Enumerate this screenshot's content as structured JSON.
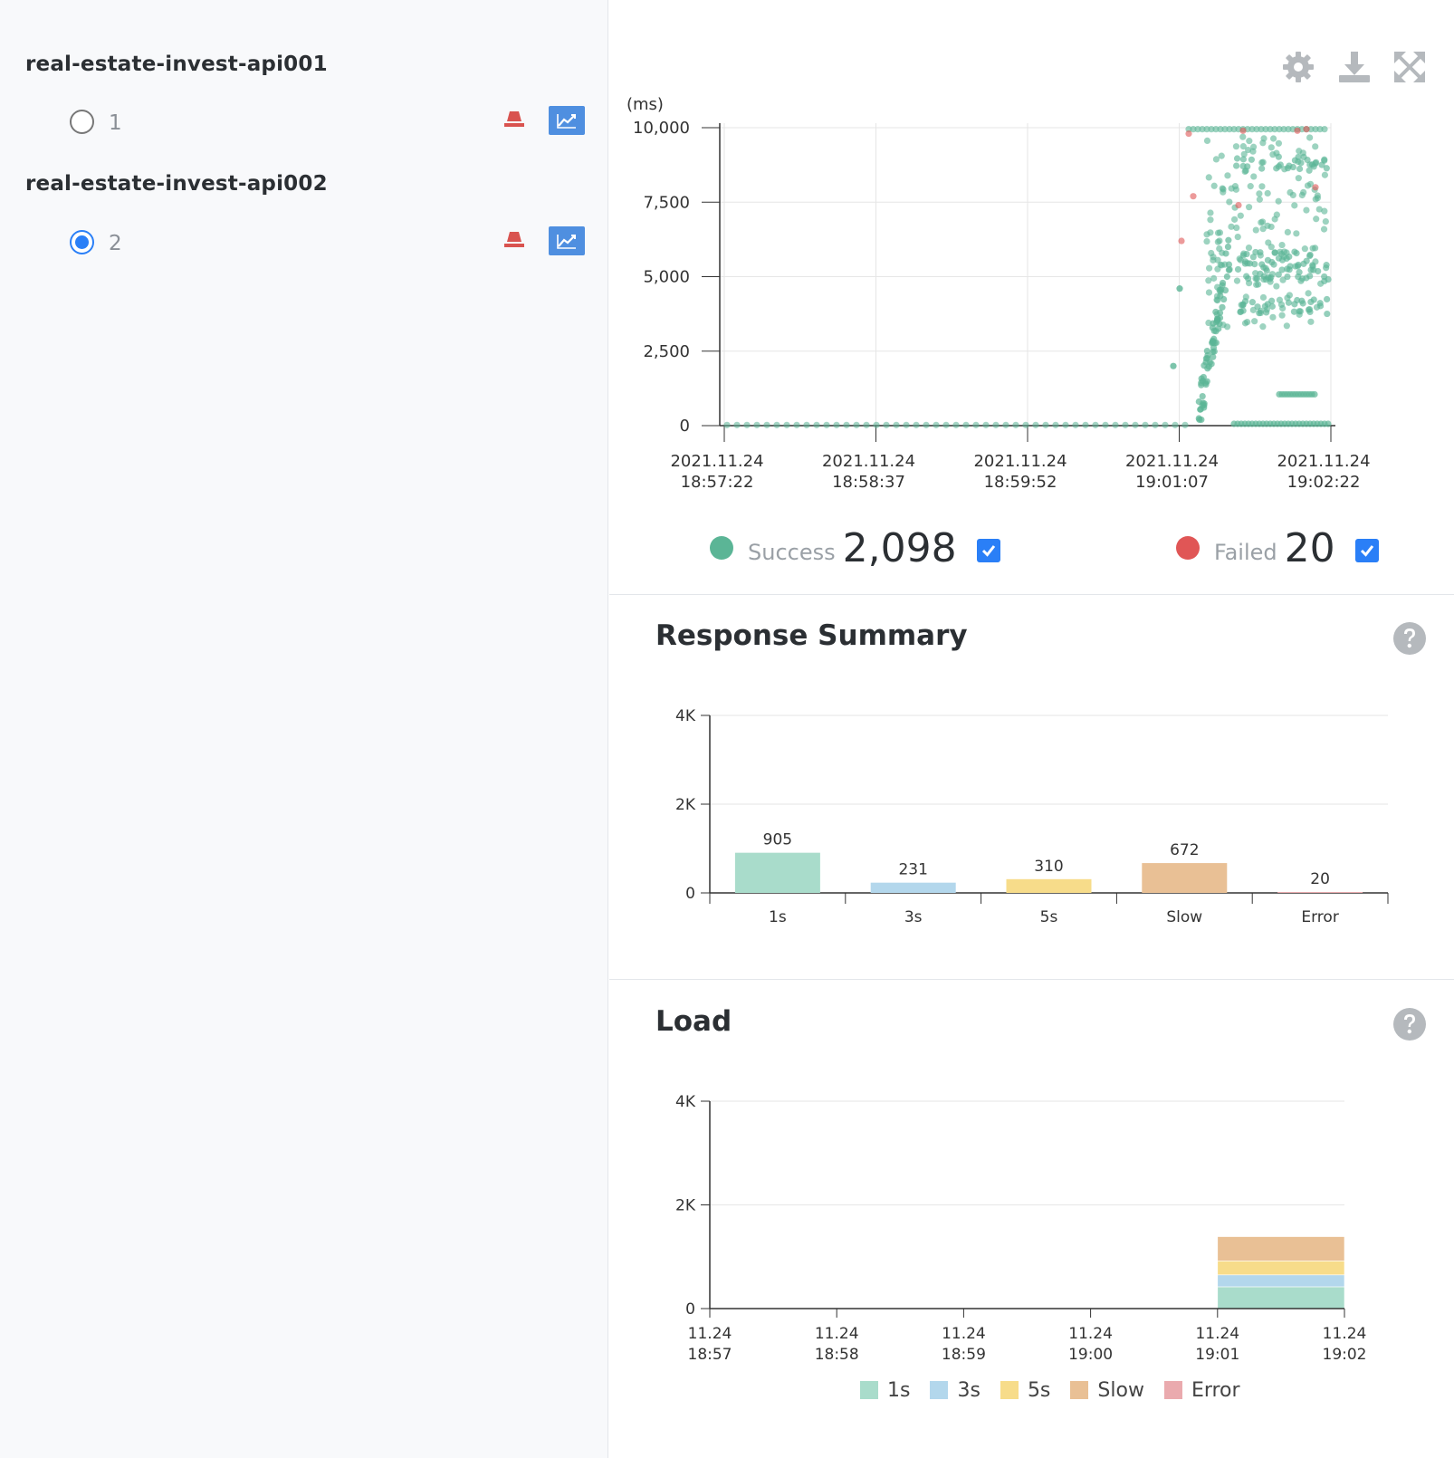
{
  "agents": [
    {
      "name": "real-estate-invest-api001",
      "instance": "1",
      "selected": false
    },
    {
      "name": "real-estate-invest-api002",
      "instance": "2",
      "selected": true
    }
  ],
  "icons": {
    "row_red": "stop-icon",
    "row_blue": "trend-chart-icon",
    "toolbar": [
      "gear-icon",
      "download-icon",
      "fullscreen-icon"
    ],
    "help": "question-circle-icon"
  },
  "colors": {
    "success": "#5bb596",
    "failed": "#e05656",
    "accent": "#2a7ff7",
    "c1s": "#a9dccb",
    "c3s": "#b3d7ec",
    "c5s": "#f7dc8a",
    "cslow": "#e9c095",
    "cerror": "#eaaaae"
  },
  "scatter": {
    "unit": "(ms)",
    "y_ticks": [
      "10,000",
      "7,500",
      "5,000",
      "2,500",
      "0"
    ],
    "x_ticks": [
      [
        "2021.11.24",
        "18:57:22"
      ],
      [
        "2021.11.24",
        "18:58:37"
      ],
      [
        "2021.11.24",
        "18:59:52"
      ],
      [
        "2021.11.24",
        "19:01:07"
      ],
      [
        "2021.11.24",
        "19:02:22"
      ]
    ],
    "success_label": "Success",
    "success_count": "2,098",
    "failed_label": "Failed",
    "failed_count": "20"
  },
  "response_summary": {
    "title": "Response Summary"
  },
  "load": {
    "title": "Load"
  },
  "chart_data": [
    {
      "type": "scatter",
      "x_type": "time",
      "ylabel": "(ms)",
      "ylim": [
        0,
        10000
      ],
      "x_range": [
        "2021.11.24 18:57:22",
        "2021.11.24 19:02:22"
      ],
      "series": [
        {
          "name": "Success",
          "count": 2098
        },
        {
          "name": "Failed",
          "count": 20
        }
      ]
    },
    {
      "type": "bar",
      "categories": [
        "1s",
        "3s",
        "5s",
        "Slow",
        "Error"
      ],
      "values": [
        905,
        231,
        310,
        672,
        20
      ],
      "y_ticks": [
        "4K",
        "2K",
        "0"
      ],
      "ylim": [
        0,
        4000
      ]
    },
    {
      "type": "area",
      "stacked": true,
      "categories": [
        [
          "11.24",
          "18:57"
        ],
        [
          "11.24",
          "18:58"
        ],
        [
          "11.24",
          "18:59"
        ],
        [
          "11.24",
          "19:00"
        ],
        [
          "11.24",
          "19:01"
        ],
        [
          "11.24",
          "19:02"
        ]
      ],
      "y_ticks": [
        "4K",
        "2K",
        "0"
      ],
      "ylim": [
        0,
        4000
      ],
      "series": [
        {
          "name": "1s",
          "values": [
            0,
            0,
            0,
            0,
            420,
            330
          ]
        },
        {
          "name": "3s",
          "values": [
            0,
            0,
            0,
            0,
            230,
            0
          ]
        },
        {
          "name": "5s",
          "values": [
            0,
            0,
            0,
            0,
            270,
            90
          ]
        },
        {
          "name": "Slow",
          "values": [
            0,
            0,
            0,
            0,
            470,
            200
          ]
        },
        {
          "name": "Error",
          "values": [
            0,
            0,
            0,
            0,
            10,
            10
          ]
        }
      ]
    }
  ]
}
